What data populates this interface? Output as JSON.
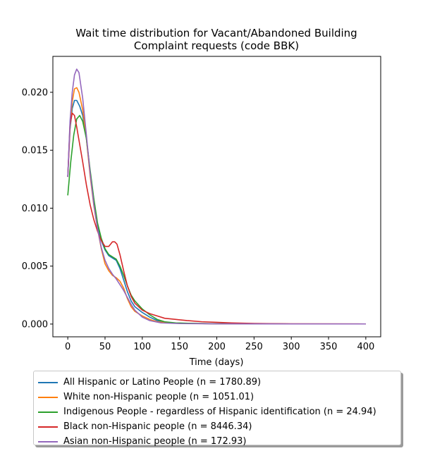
{
  "chart_data": {
    "type": "line",
    "title_line1": "Wait time distribution  for Vacant/Abandoned Building",
    "title_line2": "Complaint  requests (code BBK)",
    "xlabel": "Time (days)",
    "ylabel": "",
    "xlim": [
      -20,
      420
    ],
    "ylim": [
      -0.0011,
      0.0231
    ],
    "xticks": [
      0,
      50,
      100,
      150,
      200,
      250,
      300,
      350,
      400
    ],
    "yticks": [
      0.0,
      0.005,
      0.01,
      0.015,
      0.02
    ],
    "ytick_labels": [
      "0.000",
      "0.005",
      "0.010",
      "0.015",
      "0.020"
    ],
    "grid": false,
    "legend_position": "below",
    "series": [
      {
        "name": "All Hispanic or Latino People (n = 1780.89)",
        "color": "#1f77b4",
        "points": [
          [
            0,
            0.0127
          ],
          [
            3,
            0.0168
          ],
          [
            6,
            0.0186
          ],
          [
            9,
            0.0193
          ],
          [
            12,
            0.0193
          ],
          [
            16,
            0.0188
          ],
          [
            20,
            0.018
          ],
          [
            25,
            0.016
          ],
          [
            30,
            0.013
          ],
          [
            35,
            0.0105
          ],
          [
            40,
            0.0085
          ],
          [
            45,
            0.0072
          ],
          [
            50,
            0.0064
          ],
          [
            55,
            0.0059
          ],
          [
            60,
            0.0057
          ],
          [
            65,
            0.0055
          ],
          [
            70,
            0.0048
          ],
          [
            75,
            0.0038
          ],
          [
            80,
            0.0028
          ],
          [
            85,
            0.002
          ],
          [
            90,
            0.0015
          ],
          [
            100,
            0.001
          ],
          [
            110,
            0.0006
          ],
          [
            120,
            0.0003
          ],
          [
            130,
            0.00015
          ],
          [
            145,
            8e-05
          ],
          [
            170,
            5e-05
          ],
          [
            200,
            3e-05
          ],
          [
            250,
            2e-05
          ],
          [
            300,
            1e-05
          ],
          [
            400,
            1e-05
          ]
        ]
      },
      {
        "name": "White non-Hispanic people (n = 1051.01)",
        "color": "#ff7f0e",
        "points": [
          [
            0,
            0.0127
          ],
          [
            3,
            0.017
          ],
          [
            6,
            0.0192
          ],
          [
            9,
            0.0203
          ],
          [
            12,
            0.0204
          ],
          [
            15,
            0.02
          ],
          [
            20,
            0.0185
          ],
          [
            25,
            0.016
          ],
          [
            30,
            0.0128
          ],
          [
            35,
            0.0102
          ],
          [
            40,
            0.0082
          ],
          [
            45,
            0.0065
          ],
          [
            50,
            0.0052
          ],
          [
            55,
            0.0046
          ],
          [
            60,
            0.0042
          ],
          [
            65,
            0.004
          ],
          [
            70,
            0.0037
          ],
          [
            75,
            0.0031
          ],
          [
            80,
            0.0022
          ],
          [
            85,
            0.0015
          ],
          [
            90,
            0.0011
          ],
          [
            100,
            0.0007
          ],
          [
            110,
            0.0004
          ],
          [
            120,
            0.0002
          ],
          [
            135,
            0.0001
          ],
          [
            160,
            5e-05
          ],
          [
            200,
            3e-05
          ],
          [
            300,
            1e-05
          ],
          [
            400,
            1e-05
          ]
        ]
      },
      {
        "name": "Indigenous People - regardless of Hispanic identification (n = 24.94)",
        "color": "#2ca02c",
        "points": [
          [
            0,
            0.0111
          ],
          [
            4,
            0.014
          ],
          [
            8,
            0.0163
          ],
          [
            12,
            0.0177
          ],
          [
            16,
            0.018
          ],
          [
            20,
            0.0175
          ],
          [
            25,
            0.016
          ],
          [
            30,
            0.0133
          ],
          [
            35,
            0.0108
          ],
          [
            40,
            0.0087
          ],
          [
            45,
            0.0074
          ],
          [
            50,
            0.0065
          ],
          [
            55,
            0.006
          ],
          [
            60,
            0.0058
          ],
          [
            65,
            0.0056
          ],
          [
            70,
            0.005
          ],
          [
            75,
            0.0042
          ],
          [
            80,
            0.0033
          ],
          [
            85,
            0.0025
          ],
          [
            90,
            0.002
          ],
          [
            100,
            0.0013
          ],
          [
            110,
            0.0008
          ],
          [
            120,
            0.0004
          ],
          [
            130,
            0.0002
          ],
          [
            145,
            0.0001
          ],
          [
            170,
            5e-05
          ],
          [
            200,
            3e-05
          ],
          [
            300,
            1e-05
          ],
          [
            400,
            1e-05
          ]
        ]
      },
      {
        "name": "Black non-Hispanic people (n = 8446.34)",
        "color": "#d62728",
        "points": [
          [
            0,
            0.0127
          ],
          [
            3,
            0.0172
          ],
          [
            6,
            0.0182
          ],
          [
            9,
            0.018
          ],
          [
            12,
            0.017
          ],
          [
            16,
            0.0155
          ],
          [
            20,
            0.014
          ],
          [
            25,
            0.012
          ],
          [
            30,
            0.0103
          ],
          [
            35,
            0.009
          ],
          [
            40,
            0.008
          ],
          [
            45,
            0.0072
          ],
          [
            50,
            0.0067
          ],
          [
            55,
            0.0067
          ],
          [
            60,
            0.0071
          ],
          [
            63,
            0.0071
          ],
          [
            66,
            0.0069
          ],
          [
            70,
            0.006
          ],
          [
            75,
            0.0046
          ],
          [
            80,
            0.0033
          ],
          [
            85,
            0.0024
          ],
          [
            90,
            0.0018
          ],
          [
            100,
            0.0012
          ],
          [
            110,
            0.0009
          ],
          [
            120,
            0.0007
          ],
          [
            130,
            0.0005
          ],
          [
            145,
            0.0004
          ],
          [
            160,
            0.0003
          ],
          [
            180,
            0.0002
          ],
          [
            200,
            0.00015
          ],
          [
            220,
            0.0001
          ],
          [
            250,
            5e-05
          ],
          [
            300,
            2e-05
          ],
          [
            400,
            1e-05
          ]
        ]
      },
      {
        "name": "Asian non-Hispanic people (n = 172.93)",
        "color": "#9467bd",
        "points": [
          [
            0,
            0.0127
          ],
          [
            3,
            0.0175
          ],
          [
            6,
            0.02
          ],
          [
            9,
            0.0215
          ],
          [
            12,
            0.022
          ],
          [
            15,
            0.0217
          ],
          [
            20,
            0.0195
          ],
          [
            25,
            0.0163
          ],
          [
            30,
            0.013
          ],
          [
            35,
            0.0103
          ],
          [
            40,
            0.0082
          ],
          [
            45,
            0.0066
          ],
          [
            50,
            0.0055
          ],
          [
            55,
            0.0048
          ],
          [
            60,
            0.0043
          ],
          [
            65,
            0.0039
          ],
          [
            70,
            0.0034
          ],
          [
            75,
            0.0029
          ],
          [
            80,
            0.0023
          ],
          [
            85,
            0.0017
          ],
          [
            90,
            0.0012
          ],
          [
            100,
            0.0006
          ],
          [
            110,
            0.0003
          ],
          [
            125,
            0.0001
          ],
          [
            150,
            4e-05
          ],
          [
            200,
            2e-05
          ],
          [
            300,
            1e-05
          ],
          [
            400,
            1e-05
          ]
        ]
      }
    ]
  }
}
